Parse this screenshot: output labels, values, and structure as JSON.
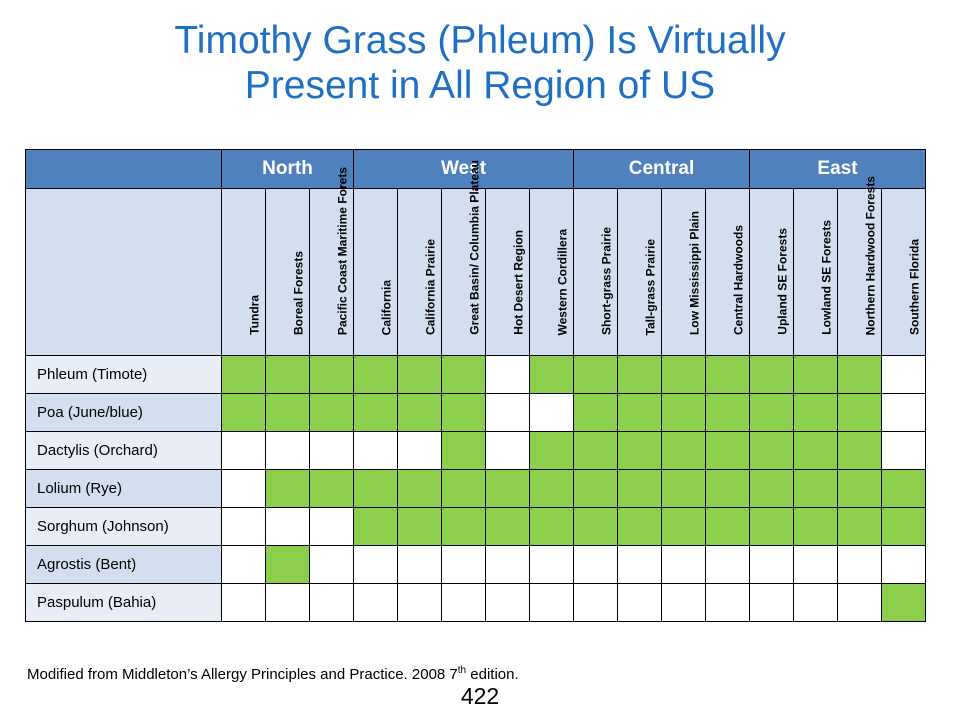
{
  "title": {
    "line1": "Timothy Grass (Phleum) Is Virtually",
    "line2": "Present in All Region of US"
  },
  "table": {
    "groups": [
      {
        "label": "North",
        "span": 3
      },
      {
        "label": "West",
        "span": 5
      },
      {
        "label": "Central",
        "span": 4
      },
      {
        "label": "East",
        "span": 4
      }
    ],
    "regions": [
      "Tundra",
      "Boreal Forests",
      "Pacific Coast Maritime Forets",
      "California",
      "California Prairie",
      "Great Basin/ Columbia Plateau",
      "Hot Desert Region",
      "Western Cordillera",
      "Short-grass Prairie",
      "Tall-grass Prairie",
      "Low Mississippi Plain",
      "Central Hardwoods",
      "Upland SE Forests",
      "Lowland SE Forests",
      "Northern Hardwood Forests",
      "Southern Florida"
    ],
    "rows": [
      {
        "label": "Phleum (Timote)",
        "present": [
          1,
          1,
          1,
          1,
          1,
          1,
          0,
          1,
          1,
          1,
          1,
          1,
          1,
          1,
          1,
          0
        ]
      },
      {
        "label": "Poa (June/blue)",
        "present": [
          1,
          1,
          1,
          1,
          1,
          1,
          0,
          0,
          1,
          1,
          1,
          1,
          1,
          1,
          1,
          0
        ]
      },
      {
        "label": "Dactylis (Orchard)",
        "present": [
          0,
          0,
          0,
          0,
          0,
          1,
          0,
          1,
          1,
          1,
          1,
          1,
          1,
          1,
          1,
          0
        ]
      },
      {
        "label": "Lolium (Rye)",
        "present": [
          0,
          1,
          1,
          1,
          1,
          1,
          1,
          1,
          1,
          1,
          1,
          1,
          1,
          1,
          1,
          1
        ]
      },
      {
        "label": "Sorghum (Johnson)",
        "present": [
          0,
          0,
          0,
          1,
          1,
          1,
          1,
          1,
          1,
          1,
          1,
          1,
          1,
          1,
          1,
          1
        ]
      },
      {
        "label": "Agrostis (Bent)",
        "present": [
          0,
          1,
          0,
          0,
          0,
          0,
          0,
          0,
          0,
          0,
          0,
          0,
          0,
          0,
          0,
          0
        ]
      },
      {
        "label": "Paspulum (Bahia)",
        "present": [
          0,
          0,
          0,
          0,
          0,
          0,
          0,
          0,
          0,
          0,
          0,
          0,
          0,
          0,
          0,
          1
        ]
      }
    ],
    "present_color": "#8ccf4d",
    "header_color": "#4f81bd"
  },
  "footer": {
    "source_main": "Modified from Middleton’s Allergy Principles and Practice. 2008 7",
    "source_sup": "th",
    "source_tail": " edition."
  },
  "page_number": "422"
}
